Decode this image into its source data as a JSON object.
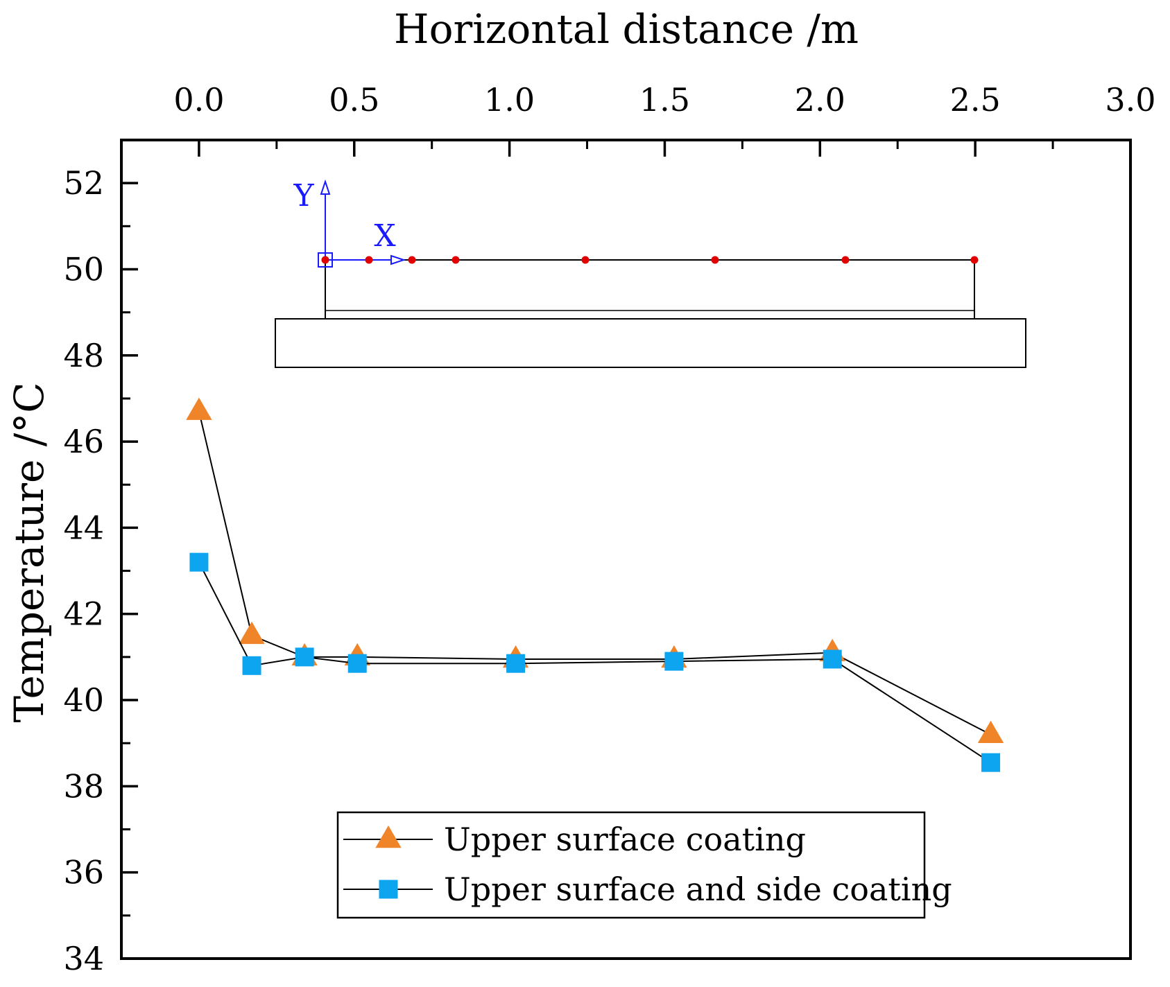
{
  "chart_data": {
    "type": "line",
    "title": "",
    "xlabel": "Horizontal distance /m",
    "ylabel": "Temperature /°C",
    "xlim": [
      -0.25,
      3.0
    ],
    "ylim": [
      34,
      53
    ],
    "x_ticks": [
      "0.0",
      "0.5",
      "1.0",
      "1.5",
      "2.0",
      "2.5",
      "3.0"
    ],
    "x_tick_values": [
      0.0,
      0.5,
      1.0,
      1.5,
      2.0,
      2.5,
      3.0
    ],
    "y_ticks": [
      "34",
      "36",
      "38",
      "40",
      "42",
      "44",
      "46",
      "48",
      "50",
      "52"
    ],
    "y_tick_values": [
      34,
      36,
      38,
      40,
      42,
      44,
      46,
      48,
      50,
      52
    ],
    "x_axis_position": "top",
    "grid": false,
    "legend_position": "bottom-center",
    "series": [
      {
        "name": "Upper surface coating",
        "marker": "triangle",
        "color": "#f08428",
        "line_color": "#000000",
        "x": [
          0.0,
          0.17,
          0.34,
          0.51,
          1.02,
          1.53,
          2.04,
          2.55
        ],
        "y": [
          46.7,
          41.5,
          41.0,
          41.0,
          40.95,
          40.95,
          41.1,
          39.2
        ]
      },
      {
        "name": "Upper surface and side coating",
        "marker": "square",
        "color": "#0da4f0",
        "line_color": "#000000",
        "x": [
          0.0,
          0.17,
          0.34,
          0.51,
          1.02,
          1.53,
          2.04,
          2.55
        ],
        "y": [
          43.2,
          40.8,
          41.0,
          40.85,
          40.85,
          40.9,
          40.95,
          38.55
        ]
      }
    ],
    "inset": {
      "description_labels": [
        "Y",
        "X"
      ],
      "axis_color": "#1a1aff",
      "point_color": "#e00000"
    }
  }
}
